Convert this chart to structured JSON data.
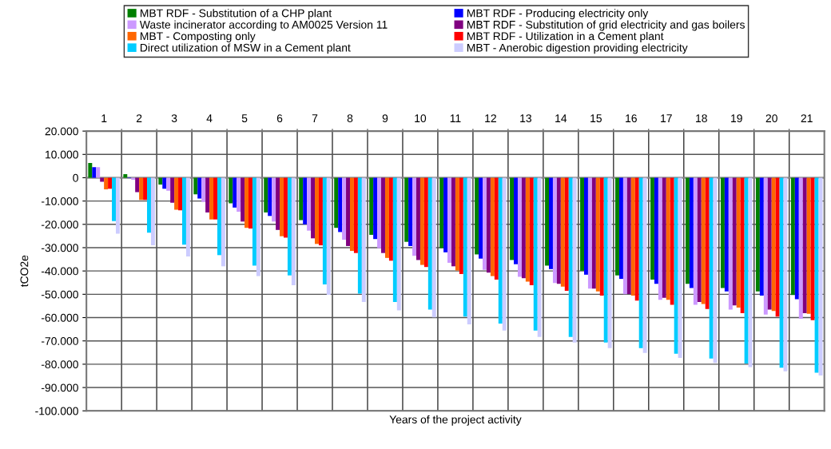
{
  "chart_data": {
    "type": "bar",
    "xlabel": "Years of the project activity",
    "ylabel": "tCO2e",
    "categories": [
      "1",
      "2",
      "3",
      "4",
      "5",
      "6",
      "7",
      "8",
      "9",
      "10",
      "11",
      "12",
      "13",
      "14",
      "15",
      "16",
      "17",
      "18",
      "19",
      "20",
      "21"
    ],
    "series": [
      {
        "name": "MBT RDF - Substitution of a CHP plant",
        "color": "#008000",
        "values": [
          6300,
          1500,
          -2900,
          -7100,
          -11000,
          -14900,
          -18200,
          -21500,
          -24500,
          -27500,
          -30200,
          -32900,
          -35300,
          -37700,
          -39900,
          -41900,
          -43700,
          -45500,
          -47300,
          -48800,
          -50300
        ]
      },
      {
        "name": "MBT RDF - Producing electricity only",
        "color": "#0000ff",
        "values": [
          4500,
          -200,
          -4700,
          -8900,
          -12800,
          -16400,
          -20000,
          -23300,
          -26300,
          -29300,
          -32000,
          -34700,
          -37100,
          -39200,
          -41600,
          -43400,
          -45500,
          -47300,
          -48800,
          -50600,
          -52100
        ]
      },
      {
        "name": "Waste incinerator according to AM0025 Version 11",
        "color": "#cc99ff",
        "values": [
          4500,
          -900,
          -5600,
          -10400,
          -14600,
          -18800,
          -22700,
          -26600,
          -30200,
          -33500,
          -36500,
          -39500,
          -42500,
          -45200,
          -47600,
          -50000,
          -52400,
          -54500,
          -56600,
          -58700,
          -60500
        ]
      },
      {
        "name": "MBT RDF - Substitution of grid electricity and gas boilers",
        "color": "#800080",
        "values": [
          -1700,
          -6200,
          -10700,
          -14900,
          -18800,
          -22400,
          -26000,
          -29300,
          -32300,
          -35300,
          -38000,
          -40700,
          -43100,
          -45500,
          -47600,
          -49900,
          -51500,
          -53300,
          -54800,
          -56600,
          -58100
        ]
      },
      {
        "name": "MBT - Composting only",
        "color": "#ff6600",
        "values": [
          -5000,
          -9500,
          -13700,
          -17900,
          -21500,
          -25100,
          -28400,
          -31400,
          -34400,
          -37400,
          -39800,
          -42200,
          -44600,
          -46700,
          -48800,
          -50600,
          -52400,
          -54200,
          -55700,
          -57200,
          -58400
        ]
      },
      {
        "name": "MBT RDF - Utilization in a Cement plant",
        "color": "#ff0000",
        "values": [
          -4700,
          -9500,
          -14000,
          -17900,
          -21800,
          -25700,
          -29000,
          -32300,
          -35600,
          -38300,
          -41300,
          -43700,
          -46100,
          -48500,
          -50600,
          -52700,
          -54500,
          -56300,
          -58100,
          -59600,
          -61100
        ]
      },
      {
        "name": "Direct utilization of MSW in a Cement plant",
        "color": "#00ccff",
        "values": [
          -18600,
          -23600,
          -28700,
          -33200,
          -37700,
          -41900,
          -45800,
          -49700,
          -53300,
          -56600,
          -59600,
          -62600,
          -65600,
          -68300,
          -70700,
          -73100,
          -75500,
          -77600,
          -79700,
          -81500,
          -83600
        ]
      },
      {
        "name": "MBT - Anerobic digestion providing electricity",
        "color": "#ccccff",
        "values": [
          -24000,
          -29000,
          -33800,
          -38000,
          -42200,
          -46100,
          -50200,
          -53300,
          -56900,
          -59900,
          -62900,
          -65600,
          -68300,
          -70700,
          -73100,
          -75200,
          -77300,
          -79400,
          -81200,
          -83000,
          -84800
        ]
      }
    ],
    "ylim": [
      -100000,
      20000
    ],
    "yticks": [
      {
        "value": -100000,
        "label": "-100.000"
      },
      {
        "value": -90000,
        "label": "-90.000"
      },
      {
        "value": -80000,
        "label": "-80.000"
      },
      {
        "value": -70000,
        "label": "-70.000"
      },
      {
        "value": -60000,
        "label": "-60.000"
      },
      {
        "value": -50000,
        "label": "-50.000"
      },
      {
        "value": -40000,
        "label": "-40.000"
      },
      {
        "value": -30000,
        "label": "-30.000"
      },
      {
        "value": -20000,
        "label": "-20.000"
      },
      {
        "value": -10000,
        "label": "-10.000"
      },
      {
        "value": 0,
        "label": "0"
      },
      {
        "value": 10000,
        "label": "10.000"
      },
      {
        "value": 20000,
        "label": "20.000"
      }
    ],
    "grid": true,
    "legend": "top"
  }
}
